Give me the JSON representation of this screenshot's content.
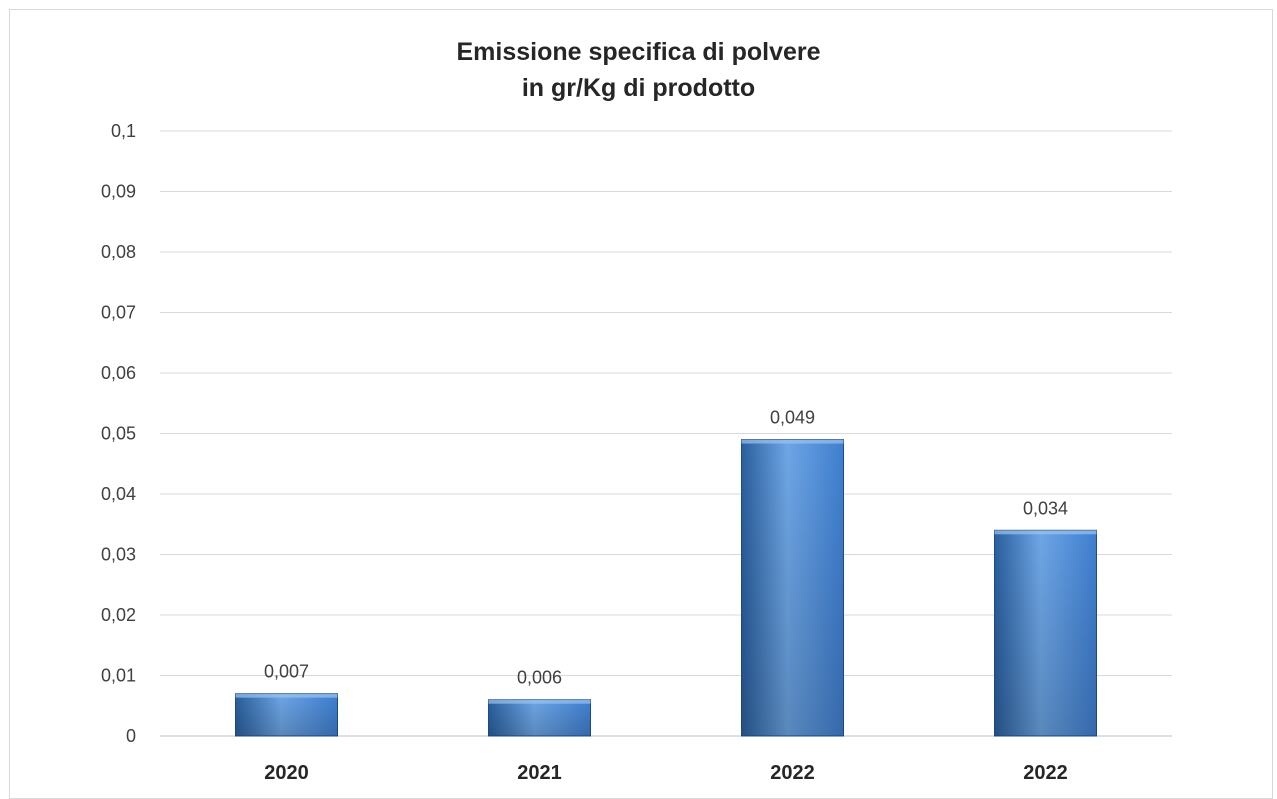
{
  "chart_data": {
    "type": "bar",
    "title_lines": [
      "Emissione specifica di polvere",
      "in gr/Kg di prodotto"
    ],
    "categories": [
      "2020",
      "2021",
      "2022",
      "2022"
    ],
    "values": [
      0.007,
      0.006,
      0.049,
      0.034
    ],
    "value_labels": [
      "0,007",
      "0,006",
      "0,049",
      "0,034"
    ],
    "ylim": [
      0,
      0.1
    ],
    "yticks": [
      0,
      0.01,
      0.02,
      0.03,
      0.04,
      0.05,
      0.06,
      0.07,
      0.08,
      0.09,
      0.1
    ],
    "ytick_labels": [
      "0",
      "0,01",
      "0,02",
      "0,03",
      "0,04",
      "0,05",
      "0,06",
      "0,07",
      "0,08",
      "0,09",
      "0,1"
    ],
    "grid": true,
    "legend": "none",
    "bar_color": "#3f7fd0",
    "bar_color_dark": "#2a5f9e",
    "bar_color_light": "#6ea6e6"
  }
}
